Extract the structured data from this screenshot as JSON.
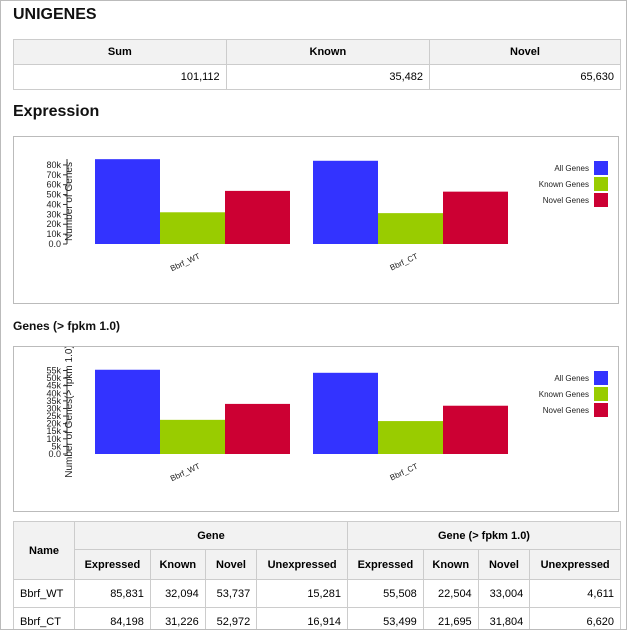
{
  "header": {
    "title": "UNIGENES"
  },
  "unigenes_table": {
    "columns": [
      "Sum",
      "Known",
      "Novel"
    ],
    "rows": [
      [
        "101,112",
        "35,482",
        "65,630"
      ]
    ]
  },
  "expression_title": "Expression",
  "genes_fpkm_title": "Genes (> fpkm 1.0)",
  "chart_data": [
    {
      "type": "bar",
      "y_label": "Number of Genes",
      "categories": [
        "Bbrf_WT",
        "Bbrf_CT"
      ],
      "series": [
        {
          "name": "All Genes",
          "color": "#3333ff",
          "values": [
            85831,
            84198
          ]
        },
        {
          "name": "Known Genes",
          "color": "#99cc00",
          "values": [
            32094,
            31226
          ]
        },
        {
          "name": "Novel Genes",
          "color": "#cc0033",
          "values": [
            53737,
            52972
          ]
        }
      ],
      "ylim": [
        0,
        86000
      ],
      "yticks": [
        {
          "value": 0,
          "label": "0.0"
        },
        {
          "value": 10000,
          "label": "10k"
        },
        {
          "value": 20000,
          "label": "20k"
        },
        {
          "value": 30000,
          "label": "30k"
        },
        {
          "value": 40000,
          "label": "40k"
        },
        {
          "value": 50000,
          "label": "50k"
        },
        {
          "value": 60000,
          "label": "60k"
        },
        {
          "value": 70000,
          "label": "70k"
        },
        {
          "value": 80000,
          "label": "80k"
        }
      ],
      "legend": "right"
    },
    {
      "type": "bar",
      "y_label": "Number of Genes(> fpkm 1.0)",
      "categories": [
        "Bbrf_WT",
        "Bbrf_CT"
      ],
      "series": [
        {
          "name": "All Genes",
          "color": "#3333ff",
          "values": [
            55508,
            53499
          ]
        },
        {
          "name": "Known Genes",
          "color": "#99cc00",
          "values": [
            22504,
            21695
          ]
        },
        {
          "name": "Novel Genes",
          "color": "#cc0033",
          "values": [
            33004,
            31804
          ]
        }
      ],
      "ylim": [
        0,
        56000
      ],
      "yticks": [
        {
          "value": 0,
          "label": "0.0"
        },
        {
          "value": 5000,
          "label": "5k"
        },
        {
          "value": 10000,
          "label": "10k"
        },
        {
          "value": 15000,
          "label": "15k"
        },
        {
          "value": 20000,
          "label": "20k"
        },
        {
          "value": 25000,
          "label": "25k"
        },
        {
          "value": 30000,
          "label": "30k"
        },
        {
          "value": 35000,
          "label": "35k"
        },
        {
          "value": 40000,
          "label": "40k"
        },
        {
          "value": 45000,
          "label": "45k"
        },
        {
          "value": 50000,
          "label": "50k"
        },
        {
          "value": 55000,
          "label": "55k"
        }
      ],
      "legend": "right"
    }
  ],
  "summary_table": {
    "name_header": "Name",
    "groups": [
      "Gene",
      "Gene (> fpkm 1.0)"
    ],
    "columns": [
      "Expressed",
      "Known",
      "Novel",
      "Unexpressed",
      "Expressed",
      "Known",
      "Novel",
      "Unexpressed"
    ],
    "rows": [
      [
        "Bbrf_WT",
        "85,831",
        "32,094",
        "53,737",
        "15,281",
        "55,508",
        "22,504",
        "33,004",
        "4,611"
      ],
      [
        "Bbrf_CT",
        "84,198",
        "31,226",
        "52,972",
        "16,914",
        "53,499",
        "21,695",
        "31,804",
        "6,620"
      ]
    ]
  }
}
